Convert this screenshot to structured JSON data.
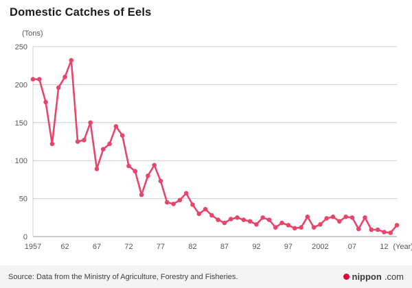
{
  "title": "Domestic Catches of Eels",
  "chart": {
    "unit_label": "(Tons)",
    "year_suffix_label": "(Year)",
    "y_ticks": [
      0,
      50,
      100,
      150,
      200,
      250
    ],
    "x_ticks": [
      {
        "year": 1957,
        "label": "1957"
      },
      {
        "year": 1962,
        "label": "62"
      },
      {
        "year": 1967,
        "label": "67"
      },
      {
        "year": 1972,
        "label": "72"
      },
      {
        "year": 1977,
        "label": "77"
      },
      {
        "year": 1982,
        "label": "82"
      },
      {
        "year": 1987,
        "label": "87"
      },
      {
        "year": 1992,
        "label": "92"
      },
      {
        "year": 1997,
        "label": "97"
      },
      {
        "year": 2002,
        "label": "2002"
      },
      {
        "year": 2007,
        "label": "07"
      },
      {
        "year": 2012,
        "label": "12"
      }
    ]
  },
  "chart_data": {
    "type": "line",
    "title": "Domestic Catches of Eels",
    "xlabel": "Year",
    "ylabel": "Tons",
    "ylim": [
      0,
      250
    ],
    "grid": true,
    "legend": "none",
    "years": [
      1957,
      1958,
      1959,
      1960,
      1961,
      1962,
      1963,
      1964,
      1965,
      1966,
      1967,
      1968,
      1969,
      1970,
      1971,
      1972,
      1973,
      1974,
      1975,
      1976,
      1977,
      1978,
      1979,
      1980,
      1981,
      1982,
      1983,
      1984,
      1985,
      1986,
      1987,
      1988,
      1989,
      1990,
      1991,
      1992,
      1993,
      1994,
      1995,
      1996,
      1997,
      1998,
      1999,
      2000,
      2001,
      2002,
      2003,
      2004,
      2005,
      2006,
      2007,
      2008,
      2009,
      2010,
      2011,
      2012,
      2013,
      2014
    ],
    "values": [
      207,
      207,
      177,
      122,
      196,
      210,
      232,
      125,
      127,
      150,
      89,
      115,
      122,
      145,
      133,
      93,
      86,
      55,
      80,
      94,
      73,
      45,
      43,
      48,
      57,
      42,
      30,
      36,
      28,
      22,
      18,
      23,
      25,
      22,
      20,
      16,
      25,
      22,
      12,
      18,
      15,
      11,
      12,
      26,
      12,
      16,
      24,
      26,
      20,
      26,
      25,
      10,
      25,
      9,
      9,
      6,
      5,
      15
    ]
  },
  "colors": {
    "line": "#e8456b",
    "grid": "#cccccc",
    "axis": "#999999",
    "tick_text": "#555555",
    "logo_red": "#d7063b"
  },
  "footer": {
    "source": "Source: Data from the Ministry of Agriculture, Forestry and Fisheries.",
    "logo_bold": "nippon",
    "logo_suffix": ".com"
  }
}
